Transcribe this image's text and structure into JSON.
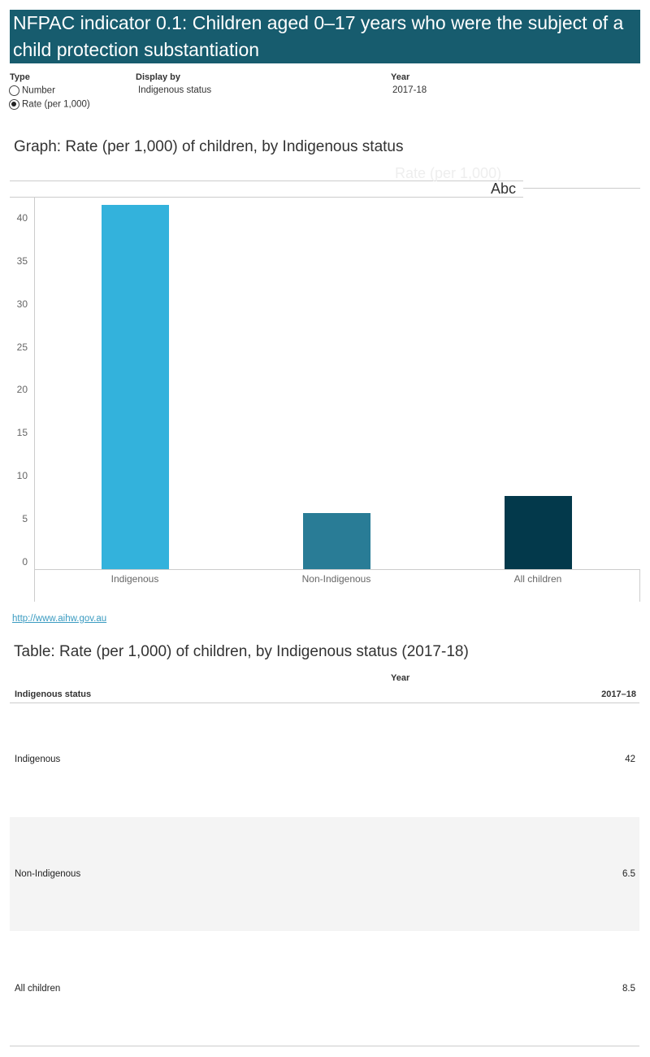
{
  "header": {
    "title": "NFPAC indicator  0.1: Children aged 0–17 years who were the subject of a child protection substantiation"
  },
  "filters": {
    "type": {
      "label": "Type",
      "options": [
        "Number",
        "Rate (per 1,000)"
      ],
      "selected": "Rate (per 1,000)"
    },
    "display_by": {
      "label": "Display by",
      "value": "Indigenous status"
    },
    "year": {
      "label": "Year",
      "value": "2017-18"
    }
  },
  "graph_title": "Graph: Rate (per 1,000) of children, by Indigenous status",
  "legend_faint": "Rate (per 1,000)",
  "legend_abc": "Abc",
  "chart_data": {
    "type": "bar",
    "categories": [
      "Indigenous",
      "Non-Indigenous",
      "All children"
    ],
    "values": [
      42.3,
      6.5,
      8.5
    ],
    "colors": [
      "#33b2dc",
      "#297c96",
      "#03394b"
    ],
    "ylim": [
      0,
      42.5
    ],
    "yticks": [
      "0",
      "5",
      "10",
      "15",
      "20",
      "25",
      "30",
      "35",
      "40"
    ],
    "grid": false
  },
  "link": "http://www.aihw.gov.au",
  "table": {
    "title": "Table: Rate (per 1,000) of children, by Indigenous status (2017-18)",
    "col_group": "Year",
    "row_header": "Indigenous status",
    "col_header": "2017–18",
    "rows": [
      {
        "label": "Indigenous",
        "value": "42"
      },
      {
        "label": "Non-Indigenous",
        "value": "6.5"
      },
      {
        "label": "All children",
        "value": "8.5"
      }
    ]
  }
}
